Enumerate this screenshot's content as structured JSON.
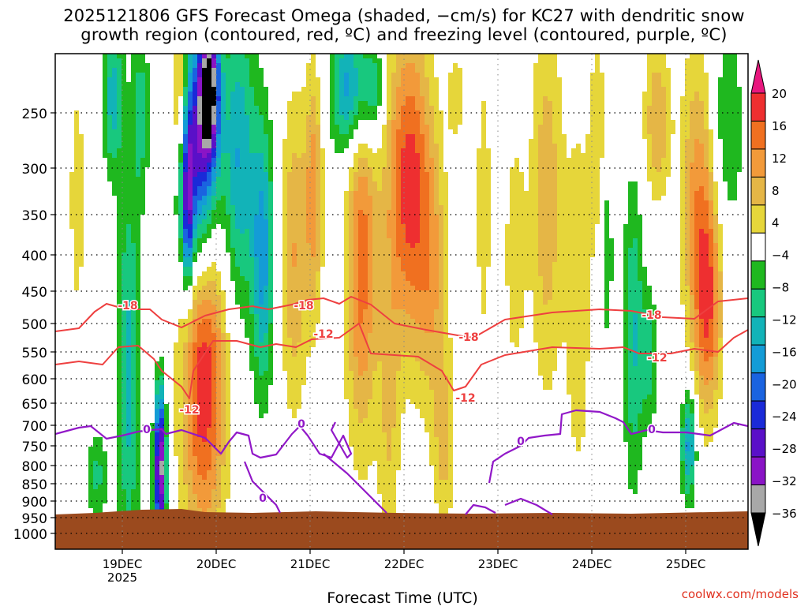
{
  "title": {
    "line1": "2025121806 GFS Forecast Omega (shaded, −cm/s) for KC27 with dendritic snow",
    "line2": "growth region (contoured, red, ºC) and freezing level (contoured, purple, ºC)"
  },
  "xlabel": "Forecast Time (UTC)",
  "credit": "coolwx.com/models",
  "chart_data": {
    "type": "heatmap",
    "x_ticks": [
      {
        "label": "19DEC",
        "sublabel": "2025",
        "hour": 18
      },
      {
        "label": "20DEC",
        "hour": 42
      },
      {
        "label": "21DEC",
        "hour": 66
      },
      {
        "label": "22DEC",
        "hour": 90
      },
      {
        "label": "23DEC",
        "hour": 114
      },
      {
        "label": "24DEC",
        "hour": 138
      },
      {
        "label": "25DEC",
        "hour": 162
      }
    ],
    "y_ticks": [
      "250",
      "300",
      "350",
      "400",
      "450",
      "500",
      "550",
      "600",
      "650",
      "700",
      "750",
      "800",
      "850",
      "900",
      "950",
      "1000"
    ],
    "y_values": [
      250,
      300,
      350,
      400,
      450,
      500,
      550,
      600,
      650,
      700,
      750,
      800,
      850,
      900,
      950,
      1000
    ],
    "colorbar": {
      "labels": [
        "20",
        "16",
        "12",
        "8",
        "4",
        "−4",
        "−8",
        "−12",
        "−16",
        "−20",
        "−24",
        "−28",
        "−32",
        "−36"
      ],
      "colors": [
        "#e8177e",
        "#ee2f30",
        "#f07020",
        "#f29a3a",
        "#e5b646",
        "#e6d63a",
        "#ffffff",
        "#1fb81f",
        "#18c87e",
        "#12b3b8",
        "#149cd6",
        "#1a63e0",
        "#1a2ad8",
        "#5a10c8",
        "#8a14c6",
        "#a8a8a8",
        "#000000"
      ]
    },
    "contour_labels": {
      "dgz_upper": "-18",
      "dgz_lower": "-12",
      "freezing": "0"
    }
  }
}
